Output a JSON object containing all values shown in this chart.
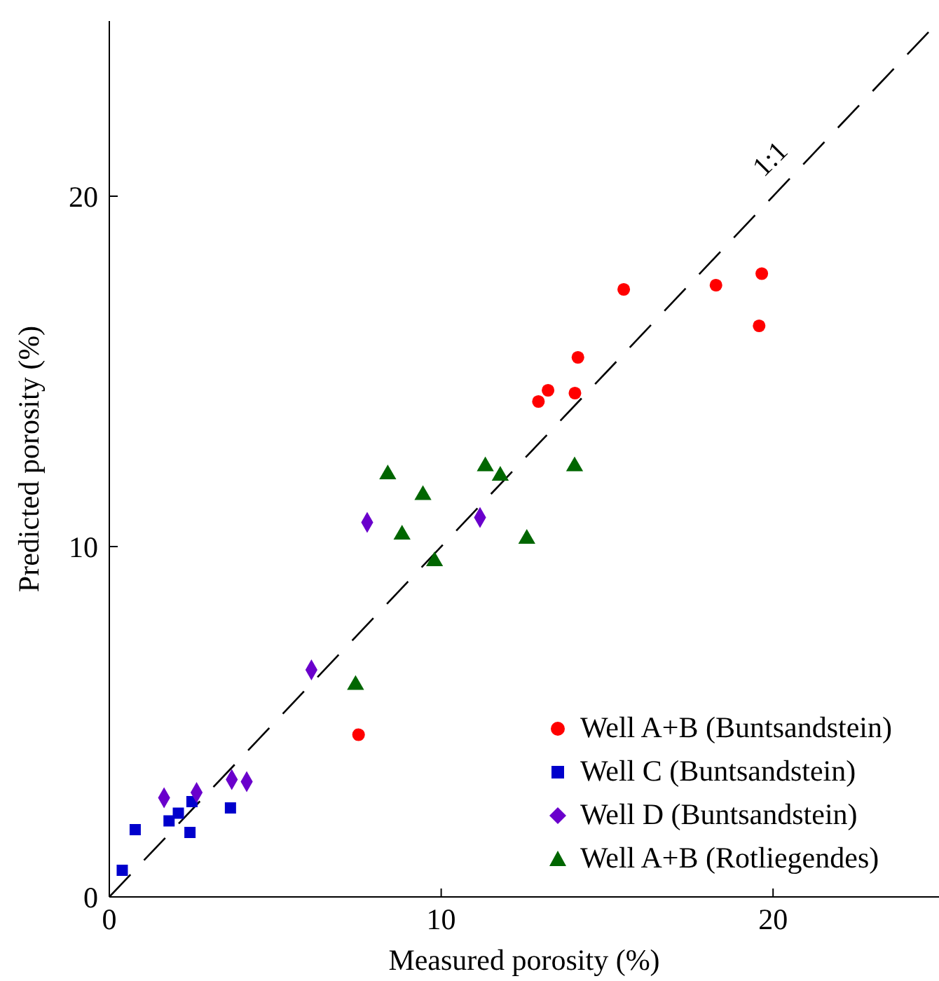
{
  "chart_data": {
    "type": "scatter",
    "xlabel": "Measured porosity (%)",
    "ylabel": "Predicted porosity (%)",
    "xlim": [
      0,
      25
    ],
    "ylim": [
      0,
      25
    ],
    "xticks": [
      0,
      10,
      20
    ],
    "yticks": [
      0,
      10,
      20
    ],
    "grid": false,
    "legend": "bottom right",
    "series": [
      {
        "name": "Well A+B (Buntsandstein)",
        "color": "#ff0000",
        "marker": "circle",
        "x": [
          7.51,
          12.93,
          13.22,
          14.03,
          14.12,
          15.5,
          18.28,
          19.58,
          19.66
        ],
        "values": [
          4.63,
          14.14,
          14.46,
          14.38,
          15.4,
          17.34,
          17.46,
          16.3,
          17.79
        ]
      },
      {
        "name": "Well C (Buntsandstein)",
        "color": "#0000cc",
        "marker": "square",
        "x": [
          0.39,
          0.78,
          1.8,
          2.08,
          2.49,
          2.43,
          3.65
        ],
        "values": [
          0.76,
          1.92,
          2.17,
          2.39,
          2.72,
          1.84,
          2.54
        ]
      },
      {
        "name": "Well D (Buntsandstein)",
        "color": "#6a00cc",
        "marker": "diamond",
        "x": [
          1.65,
          2.63,
          3.69,
          4.14,
          6.09,
          7.77,
          11.17
        ],
        "values": [
          2.83,
          2.98,
          3.35,
          3.29,
          6.48,
          10.69,
          10.83
        ]
      },
      {
        "name": "Well A+B (Rotliegendes)",
        "color": "#006600",
        "marker": "triangle",
        "x": [
          7.42,
          8.39,
          8.82,
          9.45,
          9.8,
          11.33,
          11.78,
          12.58,
          14.02
        ],
        "values": [
          6.05,
          12.06,
          10.34,
          11.47,
          9.58,
          12.29,
          12.02,
          10.22,
          12.29
        ]
      },
      {
        "name": "1:1",
        "type": "line",
        "color": "#000000",
        "line_style": "dashed",
        "marker": "none",
        "x": [
          0,
          25
        ],
        "values": [
          0,
          25
        ]
      }
    ]
  }
}
